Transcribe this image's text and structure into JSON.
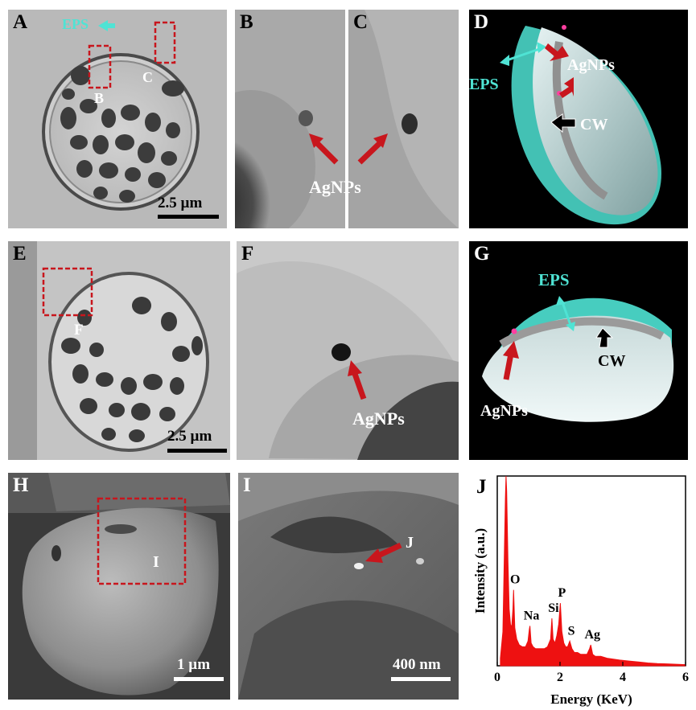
{
  "panels": {
    "A": {
      "label": "A",
      "eps": "EPS",
      "box_b": "B",
      "box_c": "C",
      "scale": "2.5 µm"
    },
    "B": {
      "label": "B"
    },
    "C": {
      "label": "C"
    },
    "BC": {
      "agnps": "AgNPs"
    },
    "D": {
      "label": "D",
      "agnps": "AgNPs",
      "eps": "EPS",
      "cw": "CW"
    },
    "E": {
      "label": "E",
      "box_f": "F",
      "scale": "2.5 µm"
    },
    "F": {
      "label": "F",
      "agnps": "AgNPs"
    },
    "G": {
      "label": "G",
      "eps": "EPS",
      "cw": "CW",
      "agnps": "AgNPs"
    },
    "H": {
      "label": "H",
      "box_i": "I",
      "scale": "1 µm"
    },
    "I": {
      "label": "I",
      "spot": "J",
      "scale": "400 nm"
    },
    "J": {
      "label": "J"
    }
  },
  "colors": {
    "eps": "#4fe3d4",
    "arrow_red": "#c8161d",
    "box_red": "#c8161d",
    "spectrum": "#ee1111"
  },
  "chart_data": {
    "type": "line",
    "xlabel": "Energy (KeV)",
    "ylabel": "Intensity (a.u.)",
    "xlim": [
      0,
      6
    ],
    "xticks": [
      "0",
      "2",
      "4",
      "6"
    ],
    "peaks": [
      {
        "name": "O",
        "energy": 0.52
      },
      {
        "name": "Na",
        "energy": 1.04
      },
      {
        "name": "Si",
        "energy": 1.74
      },
      {
        "name": "P",
        "energy": 2.01
      },
      {
        "name": "S",
        "energy": 2.31
      },
      {
        "name": "Ag",
        "energy": 2.98
      }
    ],
    "spectrum": {
      "x": [
        0.1,
        0.18,
        0.26,
        0.28,
        0.3,
        0.34,
        0.38,
        0.42,
        0.46,
        0.5,
        0.52,
        0.56,
        0.62,
        0.7,
        0.8,
        0.9,
        0.98,
        1.02,
        1.04,
        1.08,
        1.14,
        1.22,
        1.3,
        1.4,
        1.5,
        1.6,
        1.7,
        1.74,
        1.78,
        1.84,
        1.9,
        1.96,
        2.01,
        2.06,
        2.12,
        2.18,
        2.24,
        2.31,
        2.38,
        2.46,
        2.56,
        2.66,
        2.76,
        2.86,
        2.94,
        2.98,
        3.04,
        3.12,
        3.3,
        3.5,
        3.7,
        3.9,
        4.2,
        4.5,
        4.8,
        5.1,
        5.4,
        5.7,
        6.0
      ],
      "y": [
        0.04,
        0.18,
        0.88,
        1.0,
        0.92,
        0.55,
        0.3,
        0.22,
        0.2,
        0.3,
        0.4,
        0.2,
        0.14,
        0.11,
        0.1,
        0.1,
        0.13,
        0.19,
        0.21,
        0.12,
        0.1,
        0.09,
        0.09,
        0.09,
        0.09,
        0.1,
        0.14,
        0.25,
        0.14,
        0.12,
        0.16,
        0.22,
        0.33,
        0.18,
        0.12,
        0.1,
        0.1,
        0.13,
        0.09,
        0.07,
        0.07,
        0.06,
        0.06,
        0.06,
        0.09,
        0.11,
        0.06,
        0.05,
        0.05,
        0.04,
        0.035,
        0.03,
        0.025,
        0.02,
        0.015,
        0.012,
        0.01,
        0.008,
        0.006
      ]
    }
  }
}
